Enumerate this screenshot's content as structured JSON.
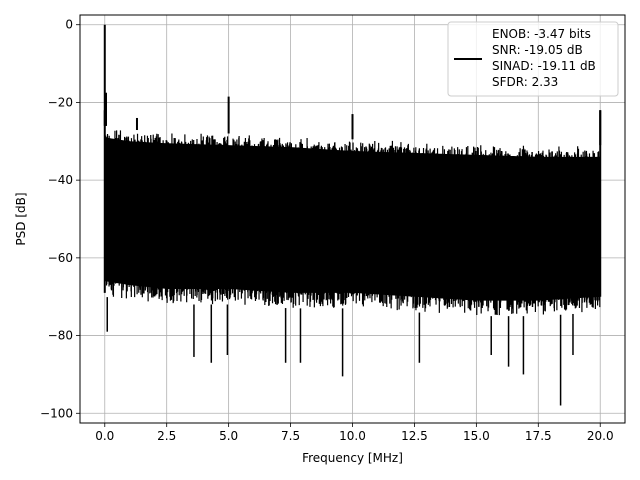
{
  "chart_data": {
    "type": "line",
    "title": "",
    "xlabel": "Frequency [MHz]",
    "ylabel": "PSD [dB]",
    "xlim": [
      -1.0,
      21.0
    ],
    "ylim": [
      -102.5,
      2.5
    ],
    "x_ticks": [
      0.0,
      2.5,
      5.0,
      7.5,
      10.0,
      12.5,
      15.0,
      17.5,
      20.0
    ],
    "x_tick_labels": [
      "0.0",
      "2.5",
      "5.0",
      "7.5",
      "10.0",
      "12.5",
      "15.0",
      "17.5",
      "20.0"
    ],
    "y_ticks": [
      0,
      -20,
      -40,
      -60,
      -80,
      -100
    ],
    "y_tick_labels": [
      "0",
      "−20",
      "−40",
      "−60",
      "−80",
      "−100"
    ],
    "grid": true,
    "legend_position": "top-right",
    "legend_lines": [
      "ENOB: -3.47 bits",
      "SNR: -19.05 dB",
      "SINAD: -19.11 dB",
      "SFDR: 2.33"
    ],
    "series": [
      {
        "color": "#000000",
        "envelope": {
          "x": [
            0.0,
            1.0,
            2.5,
            5.0,
            7.5,
            10.0,
            12.5,
            15.0,
            17.5,
            20.0
          ],
          "upper": [
            -26,
            -27,
            -27.5,
            -28,
            -28.5,
            -29.5,
            -30,
            -30.5,
            -31,
            -31
          ],
          "lower": [
            -70,
            -71,
            -72,
            -72,
            -73,
            -73,
            -74,
            -75,
            -75,
            -74
          ]
        },
        "spikes": [
          {
            "x": 0.0,
            "y": 0
          },
          {
            "x": 0.05,
            "y": -17.5
          },
          {
            "x": 1.3,
            "y": -24
          },
          {
            "x": 5.0,
            "y": -18.5
          },
          {
            "x": 10.0,
            "y": -23
          },
          {
            "x": 20.0,
            "y": -22
          }
        ],
        "dips": [
          {
            "x": 0.1,
            "y": -79
          },
          {
            "x": 3.6,
            "y": -85.5
          },
          {
            "x": 4.3,
            "y": -87
          },
          {
            "x": 4.95,
            "y": -85
          },
          {
            "x": 7.3,
            "y": -87
          },
          {
            "x": 7.9,
            "y": -87
          },
          {
            "x": 9.6,
            "y": -90.5
          },
          {
            "x": 12.7,
            "y": -87
          },
          {
            "x": 15.6,
            "y": -85
          },
          {
            "x": 16.3,
            "y": -88
          },
          {
            "x": 16.9,
            "y": -90
          },
          {
            "x": 18.4,
            "y": -98
          },
          {
            "x": 18.9,
            "y": -85
          }
        ]
      }
    ]
  }
}
